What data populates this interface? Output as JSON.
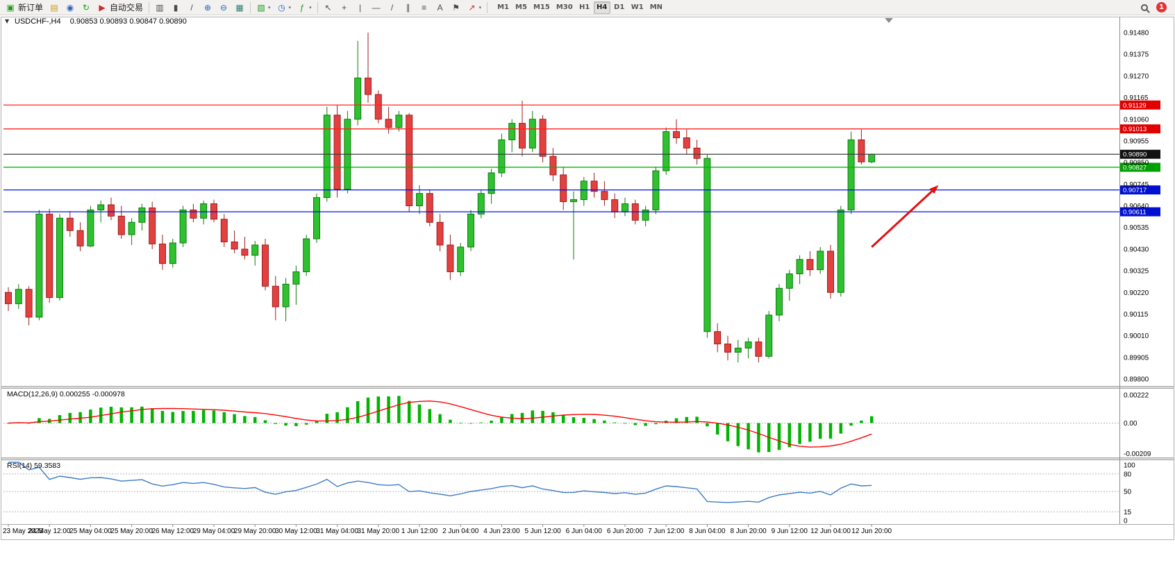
{
  "toolbar": {
    "new_order": "新订单",
    "autotrading": "自动交易",
    "timeframes": [
      "M1",
      "M5",
      "M15",
      "M30",
      "H1",
      "H4",
      "D1",
      "W1",
      "MN"
    ],
    "active_timeframe": "H4",
    "badge_count": "1"
  },
  "icons": {
    "new_order": "▣",
    "profiles": "▤",
    "market_watch": "◉",
    "refresh": "↻",
    "autotrading": "▶",
    "bars_chart": "▥",
    "candles_chart": "▮",
    "line_chart": "/",
    "zoom_in": "⊕",
    "zoom_out": "⊖",
    "tile_windows": "▦",
    "new_chart": "▧",
    "periods": "◷",
    "indicators": "ƒ",
    "cursor": "↖",
    "crosshair": "+",
    "vline": "|",
    "hline": "—",
    "trendline": "/",
    "channel": "∥",
    "fibonacci": "≡",
    "text": "A",
    "label": "⚑",
    "shapes": "↗",
    "dropdown": "▾",
    "collapse": "▼"
  },
  "chart": {
    "symbol_period": "USDCHF-,H4",
    "ohlc_text": "0.90853 0.90893 0.90847 0.90890"
  },
  "chart_data": {
    "type": "candlestick",
    "symbol": "USDCHF-",
    "period": "H4",
    "price_axis_labels": [
      "0.91480",
      "0.91375",
      "0.91270",
      "0.91165",
      "0.91060",
      "0.90955",
      "0.90850",
      "0.90745",
      "0.90640",
      "0.90535",
      "0.90430",
      "0.90325",
      "0.90220",
      "0.90115",
      "0.90010",
      "0.89905",
      "0.89800"
    ],
    "time_labels": [
      "23 May 2023",
      "24 May 12:00",
      "25 May 04:00",
      "25 May 20:00",
      "26 May 12:00",
      "29 May 04:00",
      "29 May 20:00",
      "30 May 12:00",
      "31 May 04:00",
      "31 May 20:00",
      "1 Jun 12:00",
      "2 Jun 04:00",
      "4 Jun 23:00",
      "5 Jun 12:00",
      "6 Jun 04:00",
      "6 Jun 20:00",
      "7 Jun 12:00",
      "8 Jun 04:00",
      "8 Jun 20:00",
      "9 Jun 12:00",
      "12 Jun 04:00",
      "12 Jun 20:00"
    ],
    "bars_per_label": 4,
    "candles": [
      [
        0.9022,
        0.90245,
        0.9013,
        0.90165
      ],
      [
        0.90165,
        0.9026,
        0.9014,
        0.90235
      ],
      [
        0.90235,
        0.9025,
        0.9006,
        0.901
      ],
      [
        0.901,
        0.9062,
        0.90085,
        0.906
      ],
      [
        0.906,
        0.90625,
        0.9017,
        0.90195
      ],
      [
        0.90195,
        0.906,
        0.9018,
        0.9058
      ],
      [
        0.9058,
        0.90615,
        0.9049,
        0.9052
      ],
      [
        0.9052,
        0.9056,
        0.9042,
        0.90445
      ],
      [
        0.90445,
        0.9064,
        0.9044,
        0.9062
      ],
      [
        0.9062,
        0.90665,
        0.9056,
        0.90645
      ],
      [
        0.90645,
        0.9068,
        0.9057,
        0.9059
      ],
      [
        0.9059,
        0.9064,
        0.9048,
        0.905
      ],
      [
        0.905,
        0.9058,
        0.9045,
        0.9056
      ],
      [
        0.9056,
        0.9065,
        0.9052,
        0.9063
      ],
      [
        0.9063,
        0.9066,
        0.9043,
        0.90455
      ],
      [
        0.90455,
        0.905,
        0.9033,
        0.9036
      ],
      [
        0.9036,
        0.9048,
        0.9034,
        0.9046
      ],
      [
        0.9046,
        0.9064,
        0.9044,
        0.9062
      ],
      [
        0.9062,
        0.9065,
        0.9056,
        0.9058
      ],
      [
        0.9058,
        0.90665,
        0.9055,
        0.9065
      ],
      [
        0.9065,
        0.9067,
        0.9056,
        0.90575
      ],
      [
        0.90575,
        0.906,
        0.9044,
        0.90465
      ],
      [
        0.90465,
        0.9052,
        0.9041,
        0.9043
      ],
      [
        0.9043,
        0.9049,
        0.9038,
        0.904
      ],
      [
        0.904,
        0.9047,
        0.9035,
        0.9045
      ],
      [
        0.9045,
        0.9048,
        0.9023,
        0.9025
      ],
      [
        0.9025,
        0.903,
        0.90085,
        0.9015
      ],
      [
        0.9015,
        0.9029,
        0.9008,
        0.9026
      ],
      [
        0.9026,
        0.9035,
        0.9016,
        0.9032
      ],
      [
        0.9032,
        0.905,
        0.903,
        0.9048
      ],
      [
        0.9048,
        0.907,
        0.9046,
        0.9068
      ],
      [
        0.9068,
        0.9112,
        0.9066,
        0.9108
      ],
      [
        0.9108,
        0.9113,
        0.9068,
        0.9072
      ],
      [
        0.9072,
        0.911,
        0.907,
        0.9106
      ],
      [
        0.9106,
        0.9144,
        0.9103,
        0.9126
      ],
      [
        0.9126,
        0.9148,
        0.9114,
        0.9118
      ],
      [
        0.9118,
        0.912,
        0.9104,
        0.9106
      ],
      [
        0.9106,
        0.9112,
        0.9099,
        0.9102
      ],
      [
        0.9102,
        0.911,
        0.91,
        0.9108
      ],
      [
        0.9108,
        0.9109,
        0.9061,
        0.9064
      ],
      [
        0.9064,
        0.9074,
        0.906,
        0.907
      ],
      [
        0.907,
        0.9072,
        0.9054,
        0.9056
      ],
      [
        0.9056,
        0.906,
        0.9042,
        0.9045
      ],
      [
        0.9045,
        0.905,
        0.9028,
        0.9032
      ],
      [
        0.9032,
        0.9046,
        0.903,
        0.9044
      ],
      [
        0.9044,
        0.9062,
        0.9042,
        0.906
      ],
      [
        0.906,
        0.9072,
        0.9058,
        0.907
      ],
      [
        0.907,
        0.9082,
        0.9065,
        0.908
      ],
      [
        0.908,
        0.9099,
        0.9078,
        0.9096
      ],
      [
        0.9096,
        0.9106,
        0.909,
        0.9104
      ],
      [
        0.9104,
        0.9115,
        0.9088,
        0.9092
      ],
      [
        0.9092,
        0.911,
        0.909,
        0.9106
      ],
      [
        0.9106,
        0.9108,
        0.9085,
        0.9088
      ],
      [
        0.9088,
        0.9092,
        0.9076,
        0.9079
      ],
      [
        0.9079,
        0.9083,
        0.9062,
        0.9066
      ],
      [
        0.9066,
        0.9071,
        0.9038,
        0.9067
      ],
      [
        0.9067,
        0.9078,
        0.9064,
        0.9076
      ],
      [
        0.9076,
        0.908,
        0.9068,
        0.9071
      ],
      [
        0.9071,
        0.9076,
        0.9064,
        0.9067
      ],
      [
        0.9067,
        0.907,
        0.9058,
        0.9061
      ],
      [
        0.9061,
        0.9068,
        0.9059,
        0.9065
      ],
      [
        0.9065,
        0.9067,
        0.9055,
        0.9057
      ],
      [
        0.9057,
        0.9064,
        0.9054,
        0.9062
      ],
      [
        0.9062,
        0.9083,
        0.906,
        0.9081
      ],
      [
        0.9081,
        0.9102,
        0.9079,
        0.91
      ],
      [
        0.91,
        0.9106,
        0.9094,
        0.9097
      ],
      [
        0.9097,
        0.9101,
        0.9089,
        0.9092
      ],
      [
        0.9092,
        0.9096,
        0.9084,
        0.9087
      ],
      [
        0.9087,
        0.9089,
        0.9,
        0.9003,
        "up"
      ],
      [
        0.9003,
        0.9007,
        0.8993,
        0.8997
      ],
      [
        0.8997,
        0.9001,
        0.8989,
        0.8993
      ],
      [
        0.8993,
        0.8999,
        0.8988,
        0.8995
      ],
      [
        0.8995,
        0.9,
        0.899,
        0.8998
      ],
      [
        0.8998,
        0.9,
        0.8988,
        0.8991
      ],
      [
        0.8991,
        0.9013,
        0.899,
        0.9011
      ],
      [
        0.9011,
        0.9026,
        0.9008,
        0.9024
      ],
      [
        0.9024,
        0.9033,
        0.9018,
        0.9031
      ],
      [
        0.9031,
        0.904,
        0.9026,
        0.9038
      ],
      [
        0.9038,
        0.9042,
        0.903,
        0.9033
      ],
      [
        0.9033,
        0.9044,
        0.9031,
        0.9042
      ],
      [
        0.9042,
        0.9045,
        0.9019,
        0.9022
      ],
      [
        0.9022,
        0.9064,
        0.902,
        0.9062
      ],
      [
        0.9062,
        0.91,
        0.906,
        0.9096
      ],
      [
        0.9096,
        0.9101,
        0.9084,
        0.90853
      ],
      [
        0.90853,
        0.90893,
        0.90847,
        0.9089
      ]
    ],
    "hlines": [
      {
        "price": 0.91129,
        "label": "0.91129",
        "color": "#ff2020",
        "tag": "#e00000"
      },
      {
        "price": 0.91013,
        "label": "0.91013",
        "color": "#ff2020",
        "tag": "#e00000"
      },
      {
        "price": 0.9089,
        "label": "0.90890",
        "color": "#3c3c3c",
        "tag": "#111111"
      },
      {
        "price": 0.90827,
        "label": "0.90827",
        "color": "#00b400",
        "tag": "#00a000"
      },
      {
        "price": 0.90717,
        "label": "0.90717",
        "color": "#0010ee",
        "tag": "#0010d0"
      },
      {
        "price": 0.90611,
        "label": "0.90611",
        "color": "#0010ee",
        "tag": "#0010d0"
      }
    ],
    "indicators": [
      {
        "name": "MACD",
        "title": "MACD(12,26,9) 0.000255 -0.000978",
        "params": [
          12,
          26,
          9
        ],
        "current_values": [
          0.000255,
          -0.000978
        ],
        "axis_labels": [
          "0.00222",
          "0.00",
          "-0.00209"
        ],
        "histogram_color": "#00b400",
        "signal_color": "#ff0000"
      },
      {
        "name": "RSI",
        "title": "RSI(14) 59.3583",
        "period": 14,
        "current_value": 59.3583,
        "axis_labels": [
          "100",
          "80",
          "50",
          "15",
          "0"
        ],
        "levels": [
          80,
          50,
          15
        ],
        "line_color": "#3d7bc4"
      }
    ],
    "annotations": [
      {
        "type": "arrow",
        "from_bar": 84,
        "from_price": 0.9044,
        "to_bar": 90.5,
        "to_price": 0.9074,
        "color": "#e01010"
      }
    ],
    "colors": {
      "bull_fill": "#2fc12f",
      "bull_stroke": "#0c7a0c",
      "bear_fill": "#e34040",
      "bear_stroke": "#9e1c1c",
      "background": "#ffffff"
    }
  }
}
